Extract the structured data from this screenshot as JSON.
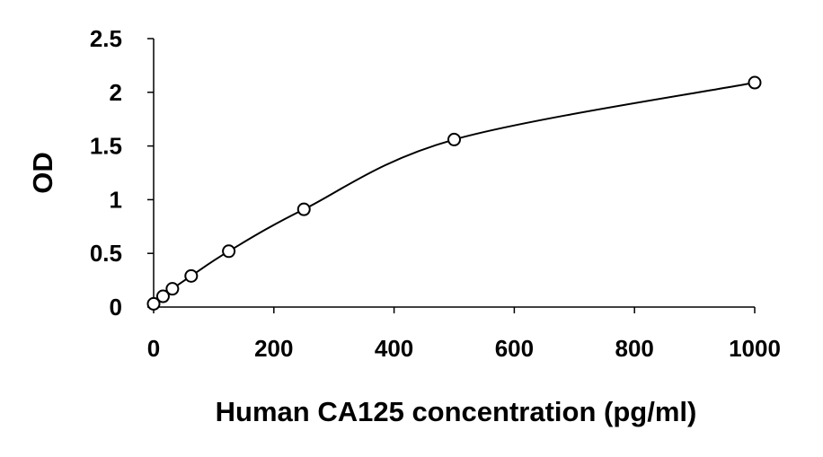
{
  "chart_data": {
    "type": "scatter",
    "title": "",
    "xlabel": "Human CA125 concentration (pg/ml)",
    "ylabel": "OD",
    "xlim": [
      0,
      1000
    ],
    "ylim": [
      0,
      2.5
    ],
    "x_ticks": [
      0,
      200,
      400,
      600,
      800,
      1000
    ],
    "y_ticks": [
      0,
      0.5,
      1,
      1.5,
      2,
      2.5
    ],
    "x_tick_labels": [
      "0",
      "200",
      "400",
      "600",
      "800",
      "1000"
    ],
    "y_tick_labels": [
      "0",
      "0.5",
      "1",
      "1.5",
      "2",
      "2.5"
    ],
    "grid": false,
    "legend": "none",
    "trendline": "smooth curve through points",
    "series": [
      {
        "x": [
          0,
          15.6,
          31.2,
          62.5,
          125,
          250,
          500,
          1000
        ],
        "y": [
          0.03,
          0.1,
          0.17,
          0.29,
          0.52,
          0.91,
          1.56,
          2.09
        ]
      }
    ],
    "colors": {
      "marker_fill": "#ffffff",
      "marker_stroke": "#000000",
      "line": "#000000"
    }
  }
}
